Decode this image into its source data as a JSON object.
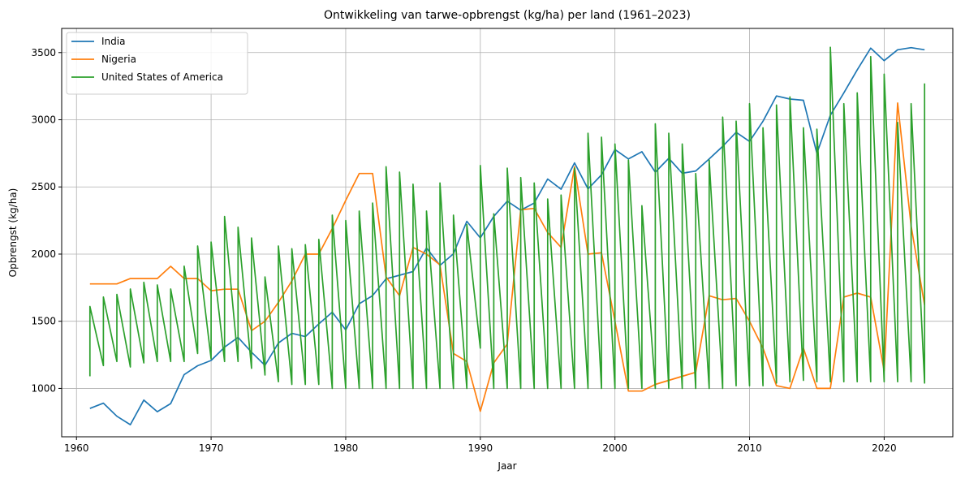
{
  "chart_data": {
    "type": "line",
    "title": "Ontwikkeling van tarwe-opbrengst (kg/ha) per land (1961–2023)",
    "xlabel": "Jaar",
    "ylabel": "Opbrengst (kg/ha)",
    "xlim": [
      1958.9,
      2025.1
    ],
    "ylim": [
      640,
      3680
    ],
    "xticks": [
      1960,
      1970,
      1980,
      1990,
      2000,
      2010,
      2020
    ],
    "yticks": [
      1000,
      1500,
      2000,
      2500,
      3000,
      3500
    ],
    "grid": true,
    "legend_position": "top-left",
    "series": [
      {
        "name": "India",
        "color": "#1f77b4",
        "points": [
          [
            1961,
            851
          ],
          [
            1962,
            890
          ],
          [
            1963,
            793
          ],
          [
            1964,
            730
          ],
          [
            1965,
            913
          ],
          [
            1966,
            827
          ],
          [
            1967,
            887
          ],
          [
            1968,
            1103
          ],
          [
            1969,
            1169
          ],
          [
            1970,
            1208
          ],
          [
            1971,
            1307
          ],
          [
            1972,
            1380
          ],
          [
            1973,
            1270
          ],
          [
            1974,
            1172
          ],
          [
            1975,
            1338
          ],
          [
            1976,
            1410
          ],
          [
            1977,
            1386
          ],
          [
            1978,
            1480
          ],
          [
            1979,
            1568
          ],
          [
            1980,
            1436
          ],
          [
            1981,
            1630
          ],
          [
            1982,
            1691
          ],
          [
            1983,
            1816
          ],
          [
            1984,
            1843
          ],
          [
            1985,
            1870
          ],
          [
            1986,
            2046
          ],
          [
            1987,
            1916
          ],
          [
            1988,
            2002
          ],
          [
            1989,
            2244
          ],
          [
            1990,
            2121
          ],
          [
            1991,
            2281
          ],
          [
            1992,
            2394
          ],
          [
            1993,
            2327
          ],
          [
            1994,
            2380
          ],
          [
            1995,
            2559
          ],
          [
            1996,
            2483
          ],
          [
            1997,
            2679
          ],
          [
            1998,
            2485
          ],
          [
            1999,
            2590
          ],
          [
            2000,
            2778
          ],
          [
            2001,
            2708
          ],
          [
            2002,
            2762
          ],
          [
            2003,
            2610
          ],
          [
            2004,
            2713
          ],
          [
            2005,
            2602
          ],
          [
            2006,
            2619
          ],
          [
            2007,
            2708
          ],
          [
            2008,
            2802
          ],
          [
            2009,
            2907
          ],
          [
            2010,
            2839
          ],
          [
            2011,
            2989
          ],
          [
            2012,
            3177
          ],
          [
            2013,
            3154
          ],
          [
            2014,
            3145
          ],
          [
            2015,
            2750
          ],
          [
            2016,
            3034
          ],
          [
            2017,
            3200
          ],
          [
            2018,
            3371
          ],
          [
            2019,
            3533
          ],
          [
            2020,
            3440
          ],
          [
            2021,
            3521
          ],
          [
            2022,
            3537
          ],
          [
            2023,
            3521
          ]
        ]
      },
      {
        "name": "Nigeria",
        "color": "#ff7f0e",
        "points": [
          [
            1961,
            1778
          ],
          [
            1962,
            1778
          ],
          [
            1963,
            1778
          ],
          [
            1964,
            1818
          ],
          [
            1965,
            1818
          ],
          [
            1966,
            1818
          ],
          [
            1967,
            1909
          ],
          [
            1968,
            1818
          ],
          [
            1969,
            1818
          ],
          [
            1970,
            1727
          ],
          [
            1971,
            1739
          ],
          [
            1972,
            1739
          ],
          [
            1973,
            1430
          ],
          [
            1974,
            1500
          ],
          [
            1975,
            1640
          ],
          [
            1976,
            1800
          ],
          [
            1977,
            2000
          ],
          [
            1978,
            2000
          ],
          [
            1979,
            2190
          ],
          [
            1980,
            2400
          ],
          [
            1981,
            2600
          ],
          [
            1982,
            2600
          ],
          [
            1983,
            1830
          ],
          [
            1984,
            1690
          ],
          [
            1985,
            2050
          ],
          [
            1986,
            2000
          ],
          [
            1987,
            1920
          ],
          [
            1988,
            1260
          ],
          [
            1989,
            1200
          ],
          [
            1990,
            830
          ],
          [
            1991,
            1190
          ],
          [
            1992,
            1330
          ],
          [
            1993,
            2330
          ],
          [
            1994,
            2340
          ],
          [
            1995,
            2160
          ],
          [
            1996,
            2050
          ],
          [
            1997,
            2650
          ],
          [
            1998,
            2000
          ],
          [
            1999,
            2010
          ],
          [
            2000,
            1500
          ],
          [
            2001,
            980
          ],
          [
            2002,
            980
          ],
          [
            2003,
            1030
          ],
          [
            2004,
            1060
          ],
          [
            2005,
            1090
          ],
          [
            2006,
            1120
          ],
          [
            2007,
            1690
          ],
          [
            2008,
            1660
          ],
          [
            2009,
            1670
          ],
          [
            2010,
            1500
          ],
          [
            2011,
            1300
          ],
          [
            2012,
            1020
          ],
          [
            2013,
            1000
          ],
          [
            2014,
            1300
          ],
          [
            2015,
            1000
          ],
          [
            2016,
            1000
          ],
          [
            2017,
            1680
          ],
          [
            2018,
            1710
          ],
          [
            2019,
            1680
          ],
          [
            2020,
            1130
          ],
          [
            2021,
            3125
          ],
          [
            2022,
            2210
          ],
          [
            2023,
            1620
          ]
        ]
      },
      {
        "name": "United States of America",
        "color": "#2ca02c",
        "points": [
          [
            1961,
            1090
          ],
          [
            1961,
            1610
          ],
          [
            1962,
            1170
          ],
          [
            1962,
            1680
          ],
          [
            1963,
            1200
          ],
          [
            1963,
            1700
          ],
          [
            1964,
            1160
          ],
          [
            1964,
            1740
          ],
          [
            1965,
            1190
          ],
          [
            1965,
            1790
          ],
          [
            1966,
            1200
          ],
          [
            1966,
            1770
          ],
          [
            1967,
            1200
          ],
          [
            1967,
            1740
          ],
          [
            1968,
            1200
          ],
          [
            1968,
            1910
          ],
          [
            1969,
            1260
          ],
          [
            1969,
            2060
          ],
          [
            1970,
            1220
          ],
          [
            1970,
            2090
          ],
          [
            1971,
            1200
          ],
          [
            1971,
            2280
          ],
          [
            1972,
            1200
          ],
          [
            1972,
            2200
          ],
          [
            1973,
            1150
          ],
          [
            1973,
            2120
          ],
          [
            1974,
            1100
          ],
          [
            1974,
            1830
          ],
          [
            1975,
            1050
          ],
          [
            1975,
            2060
          ],
          [
            1976,
            1030
          ],
          [
            1976,
            2040
          ],
          [
            1977,
            1030
          ],
          [
            1977,
            2070
          ],
          [
            1978,
            1030
          ],
          [
            1978,
            2110
          ],
          [
            1979,
            1000
          ],
          [
            1979,
            2290
          ],
          [
            1980,
            1000
          ],
          [
            1980,
            2250
          ],
          [
            1981,
            1000
          ],
          [
            1981,
            2320
          ],
          [
            1982,
            1000
          ],
          [
            1982,
            2380
          ],
          [
            1983,
            1000
          ],
          [
            1983,
            2650
          ],
          [
            1984,
            1000
          ],
          [
            1984,
            2610
          ],
          [
            1985,
            1000
          ],
          [
            1985,
            2520
          ],
          [
            1986,
            1000
          ],
          [
            1986,
            2320
          ],
          [
            1987,
            1000
          ],
          [
            1987,
            2530
          ],
          [
            1988,
            1000
          ],
          [
            1988,
            2290
          ],
          [
            1989,
            1000
          ],
          [
            1989,
            2220
          ],
          [
            1990,
            1300
          ],
          [
            1990,
            2660
          ],
          [
            1991,
            1000
          ],
          [
            1991,
            2300
          ],
          [
            1992,
            1000
          ],
          [
            1992,
            2640
          ],
          [
            1993,
            1000
          ],
          [
            1993,
            2570
          ],
          [
            1994,
            1000
          ],
          [
            1994,
            2530
          ],
          [
            1995,
            1000
          ],
          [
            1995,
            2410
          ],
          [
            1996,
            1000
          ],
          [
            1996,
            2440
          ],
          [
            1997,
            1000
          ],
          [
            1997,
            2640
          ],
          [
            1998,
            1000
          ],
          [
            1998,
            2900
          ],
          [
            1999,
            1000
          ],
          [
            1999,
            2870
          ],
          [
            2000,
            1000
          ],
          [
            2000,
            2820
          ],
          [
            2001,
            1000
          ],
          [
            2001,
            2700
          ],
          [
            2002,
            1000
          ],
          [
            2002,
            2360
          ],
          [
            2003,
            1000
          ],
          [
            2003,
            2970
          ],
          [
            2004,
            1000
          ],
          [
            2004,
            2900
          ],
          [
            2005,
            1000
          ],
          [
            2005,
            2820
          ],
          [
            2006,
            1000
          ],
          [
            2006,
            2600
          ],
          [
            2007,
            1000
          ],
          [
            2007,
            2700
          ],
          [
            2008,
            1000
          ],
          [
            2008,
            3020
          ],
          [
            2009,
            1020
          ],
          [
            2009,
            2990
          ],
          [
            2010,
            1020
          ],
          [
            2010,
            3120
          ],
          [
            2011,
            1020
          ],
          [
            2011,
            2940
          ],
          [
            2012,
            1040
          ],
          [
            2012,
            3110
          ],
          [
            2013,
            1050
          ],
          [
            2013,
            3170
          ],
          [
            2014,
            1060
          ],
          [
            2014,
            2940
          ],
          [
            2015,
            1050
          ],
          [
            2015,
            2930
          ],
          [
            2016,
            1050
          ],
          [
            2016,
            3540
          ],
          [
            2017,
            1050
          ],
          [
            2017,
            3120
          ],
          [
            2018,
            1050
          ],
          [
            2018,
            3200
          ],
          [
            2019,
            1050
          ],
          [
            2019,
            3470
          ],
          [
            2020,
            1050
          ],
          [
            2020,
            3340
          ],
          [
            2021,
            1050
          ],
          [
            2021,
            2980
          ],
          [
            2022,
            1050
          ],
          [
            2022,
            3120
          ],
          [
            2023,
            1040
          ],
          [
            2023,
            3270
          ]
        ]
      }
    ]
  }
}
